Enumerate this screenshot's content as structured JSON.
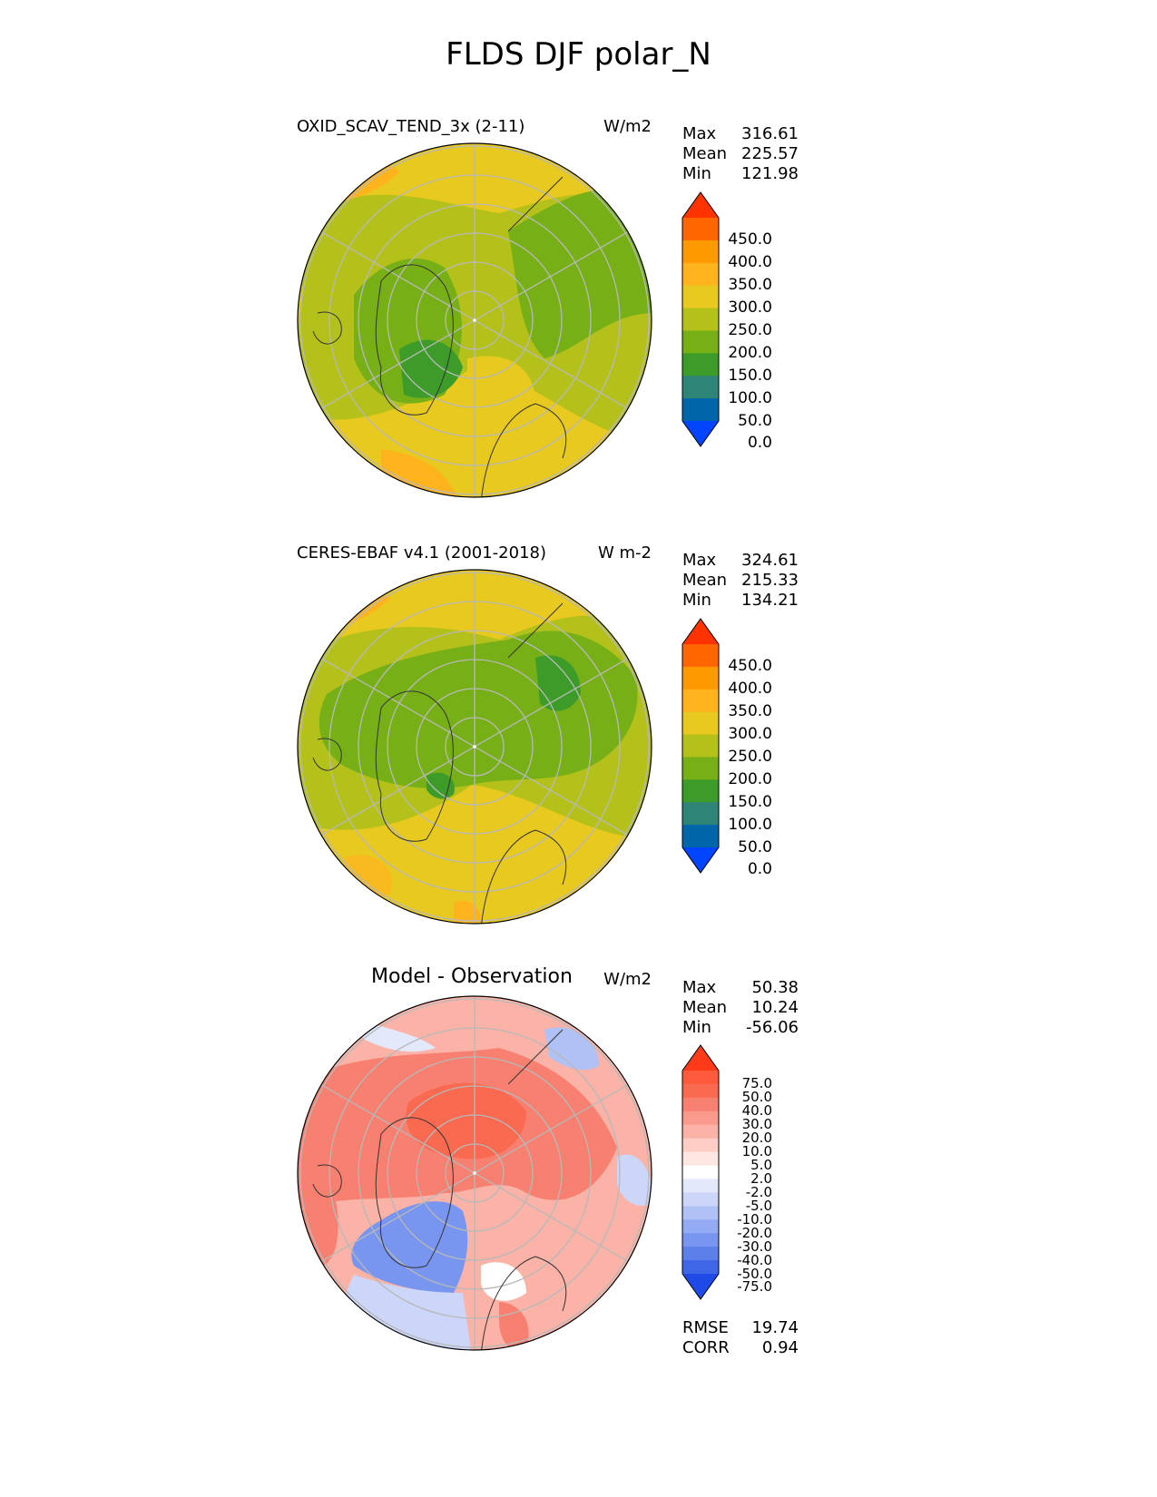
{
  "title": "FLDS DJF polar_N",
  "panels": [
    {
      "id": "model",
      "title": "OXID_SCAV_TEND_3x (2-11)",
      "units": "W/m2",
      "stats": [
        {
          "label": "Max",
          "value": "316.61"
        },
        {
          "label": "Mean",
          "value": "225.57"
        },
        {
          "label": "Min",
          "value": "121.98"
        }
      ]
    },
    {
      "id": "obs",
      "title": "CERES-EBAF v4.1 (2001-2018)",
      "units": "W m-2",
      "stats": [
        {
          "label": "Max",
          "value": "324.61"
        },
        {
          "label": "Mean",
          "value": "215.33"
        },
        {
          "label": "Min",
          "value": "134.21"
        }
      ]
    },
    {
      "id": "diff",
      "title": "Model - Observation",
      "units": "W/m2",
      "stats": [
        {
          "label": "Max",
          "value": "50.38"
        },
        {
          "label": "Mean",
          "value": "10.24"
        },
        {
          "label": "Min",
          "value": "-56.06"
        }
      ],
      "metrics": [
        {
          "label": "RMSE",
          "value": "19.74"
        },
        {
          "label": "CORR",
          "value": "0.94"
        }
      ]
    }
  ],
  "colorbar_abs": {
    "labels": [
      "450.0",
      "400.0",
      "350.0",
      "300.0",
      "250.0",
      "200.0",
      "150.0",
      "100.0",
      "50.0",
      "0.0"
    ],
    "colors": [
      "#ff3300",
      "#ff6600",
      "#ff9900",
      "#ffb41e",
      "#e8c91f",
      "#b5c11b",
      "#76b016",
      "#3d9b29",
      "#2e8477",
      "#0066a9",
      "#0044ff"
    ]
  },
  "colorbar_diff": {
    "labels": [
      "75.0",
      "50.0",
      "40.0",
      "30.0",
      "20.0",
      "10.0",
      "5.0",
      "2.0",
      "-2.0",
      "-5.0",
      "-10.0",
      "-20.0",
      "-30.0",
      "-40.0",
      "-50.0",
      "-75.0"
    ],
    "colors": [
      "#ff3a1a",
      "#ff5a3c",
      "#fa6a50",
      "#f88070",
      "#f99a8c",
      "#fbb3a8",
      "#fdcdc6",
      "#fee6e2",
      "#ffffff",
      "#e3e8fb",
      "#ccd6f8",
      "#b0c1f5",
      "#93abf2",
      "#7896ef",
      "#5c7fea",
      "#3e66e6",
      "#1f4ae8"
    ]
  }
}
